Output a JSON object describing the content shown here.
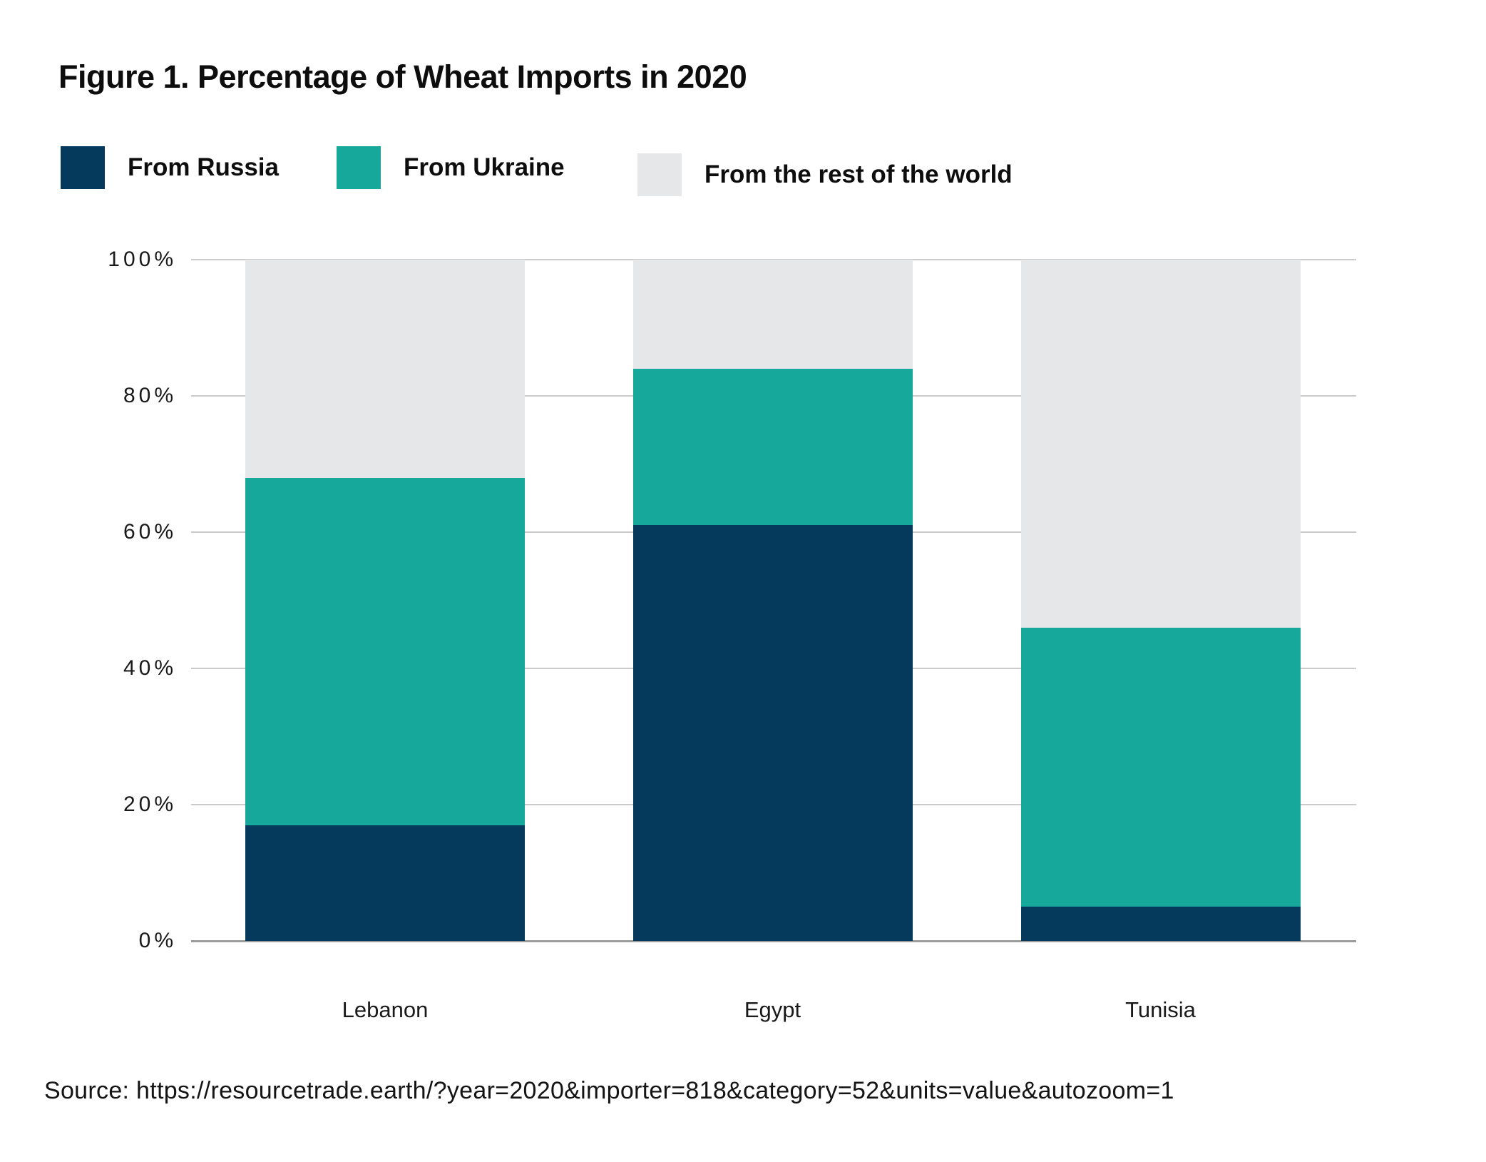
{
  "title": "Figure 1. Percentage of Wheat Imports in 2020",
  "source_line": "Source: https://resourcetrade.earth/?year=2020&importer=818&category=52&units=value&autozoom=1",
  "colors": {
    "russia": "#063a5d",
    "ukraine": "#15a89b",
    "rest_of_world": "#e6e7e8",
    "gridline": "#cbcbcb",
    "axis_line": "#9c9c9c",
    "text": "#111111"
  },
  "chart_data": {
    "type": "bar",
    "stacked": true,
    "title": "Figure 1. Percentage of Wheat Imports in 2020",
    "categories": [
      "Lebanon",
      "Egypt",
      "Tunisia"
    ],
    "series": [
      {
        "name": "From Russia",
        "key": "russia",
        "values": [
          17,
          61,
          5
        ]
      },
      {
        "name": "From Ukraine",
        "key": "ukraine",
        "values": [
          51,
          23,
          41
        ]
      },
      {
        "name": "From the rest of the world",
        "key": "rest",
        "values": [
          32,
          16,
          54
        ]
      }
    ],
    "stack_top_boundaries_note": "cumulative tops: Lebanon 17/68/100, Egypt 61/84/100, Tunisia 5/46/100",
    "y_ticks": [
      {
        "label": "100%",
        "value": 100
      },
      {
        "label": "80%",
        "value": 80
      },
      {
        "label": "60%",
        "value": 60
      },
      {
        "label": "40%",
        "value": 40
      },
      {
        "label": "20%",
        "value": 20
      },
      {
        "label": "0%",
        "value": 0
      }
    ],
    "ylim": [
      0,
      100
    ],
    "xlabel": "",
    "ylabel": "",
    "grid": true,
    "legend_position": "top-left"
  }
}
